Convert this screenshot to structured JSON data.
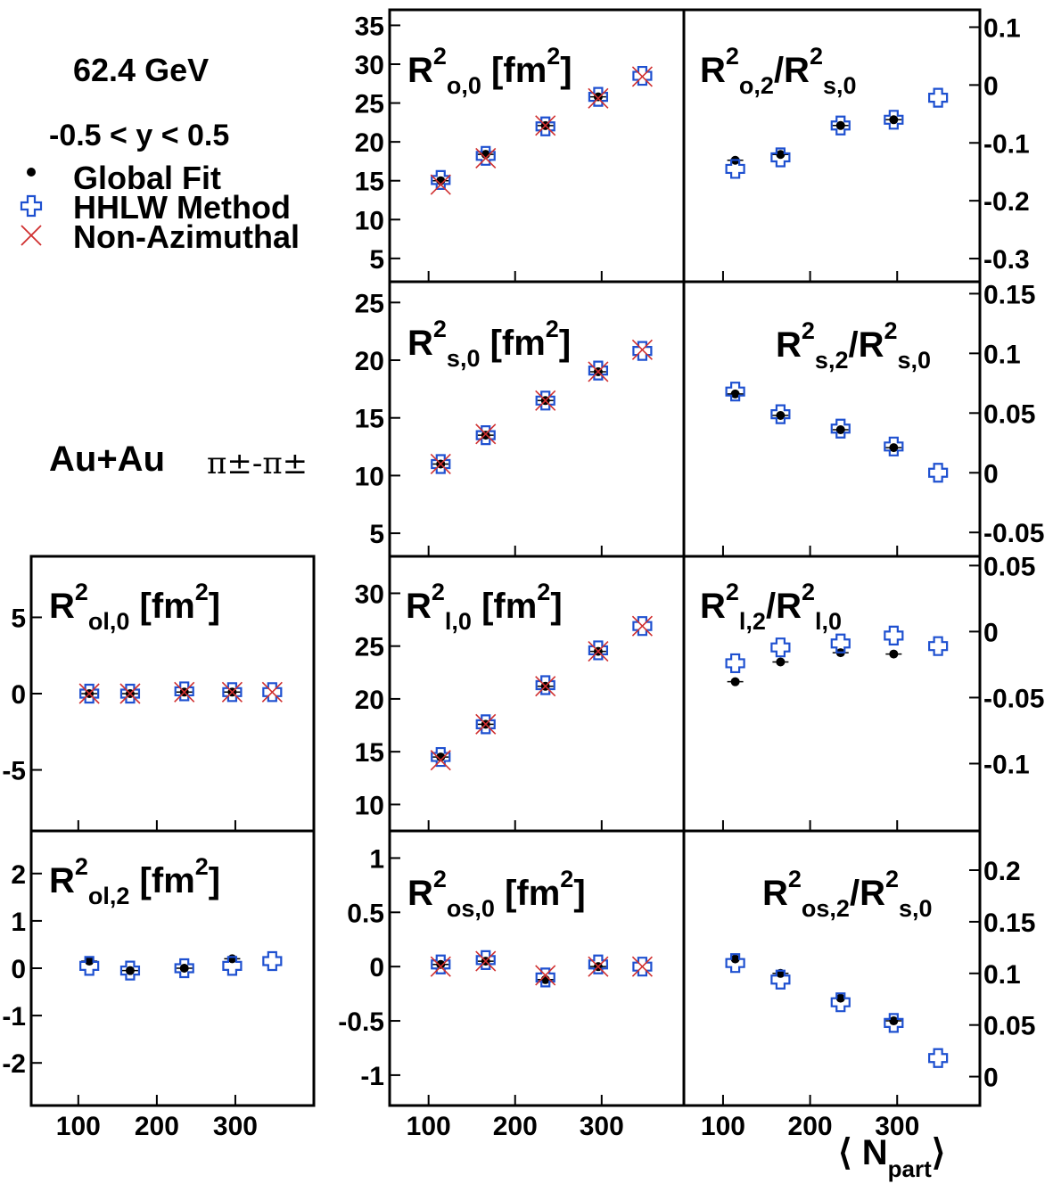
{
  "header": {
    "energy": "62.4 GeV",
    "rapidity": "-0.5 < y < 0.5",
    "system": "Au+Au",
    "pairs": "π±-π±"
  },
  "legend": [
    {
      "label": "Global Fit",
      "symbol": "dot",
      "color": "#000000"
    },
    {
      "label": "HHLW Method",
      "symbol": "open-cross",
      "color": "#1e50d0"
    },
    {
      "label": "Non-Azimuthal",
      "symbol": "x",
      "color": "#d03030"
    }
  ],
  "x_axis_title": {
    "main": "⟨ N",
    "sub": "part",
    "close": "⟩"
  },
  "chart_data": [
    {
      "id": "Ro0",
      "type": "scatter",
      "title_main": "R",
      "title_sup": "2",
      "title_sub": "o,0",
      "title_tail": " [fm",
      "title_tail_sup": "2",
      "title_close": "]",
      "xlim": [
        55,
        395
      ],
      "ylim": [
        2.0,
        37.0
      ],
      "x_ticks": [
        100,
        200,
        300
      ],
      "x_tick_labels": [],
      "y_ticks": [
        5,
        10,
        15,
        20,
        25,
        30,
        35
      ],
      "y_tick_labels": [
        "5",
        "10",
        "15",
        "20",
        "25",
        "30",
        "35"
      ],
      "y_label_side": "left",
      "series": [
        {
          "name": "Global Fit",
          "x": [
            114,
            166,
            235,
            296
          ],
          "y": [
            15.0,
            18.4,
            22.1,
            25.8
          ]
        },
        {
          "name": "HHLW Method",
          "x": [
            114,
            166,
            235,
            296,
            347
          ],
          "y": [
            15.1,
            18.2,
            22.0,
            25.8,
            28.5
          ]
        },
        {
          "name": "Non-Azimuthal",
          "x": [
            114,
            166,
            235,
            296,
            347
          ],
          "y": [
            14.5,
            17.9,
            22.1,
            25.6,
            28.4
          ]
        }
      ]
    },
    {
      "id": "Ro2",
      "type": "scatter",
      "title_main": "R",
      "title_sup": "2",
      "title_sub": "o,2",
      "title_tail": "/R",
      "title_tail_sup": "2",
      "title_tail_sub": "s,0",
      "xlim": [
        55,
        395
      ],
      "ylim": [
        -0.34,
        0.13
      ],
      "x_ticks": [
        100,
        200,
        300
      ],
      "x_tick_labels": [],
      "y_ticks": [
        -0.3,
        -0.2,
        -0.1,
        0,
        0.1
      ],
      "y_tick_labels": [
        "-0.3",
        "-0.2",
        "-0.1",
        "0",
        "0.1"
      ],
      "y_label_side": "right",
      "series": [
        {
          "name": "Global Fit",
          "x": [
            114,
            166,
            235,
            296
          ],
          "y": [
            -0.13,
            -0.12,
            -0.07,
            -0.06
          ]
        },
        {
          "name": "HHLW Method",
          "x": [
            114,
            166,
            235,
            296,
            347
          ],
          "y": [
            -0.145,
            -0.125,
            -0.07,
            -0.06,
            -0.022
          ]
        }
      ]
    },
    {
      "id": "Rs0",
      "type": "scatter",
      "title_main": "R",
      "title_sup": "2",
      "title_sub": "s,0",
      "title_tail": " [fm",
      "title_tail_sup": "2",
      "title_close": "]",
      "xlim": [
        55,
        395
      ],
      "ylim": [
        3.0,
        26.8
      ],
      "x_ticks": [
        100,
        200,
        300
      ],
      "x_tick_labels": [],
      "y_ticks": [
        5,
        10,
        15,
        20,
        25
      ],
      "y_tick_labels": [
        "5",
        "10",
        "15",
        "20",
        "25"
      ],
      "y_label_side": "left",
      "series": [
        {
          "name": "Global Fit",
          "x": [
            114,
            166,
            235,
            296
          ],
          "y": [
            11.0,
            13.5,
            16.5,
            19.0
          ]
        },
        {
          "name": "HHLW Method",
          "x": [
            114,
            166,
            235,
            296,
            347
          ],
          "y": [
            11.0,
            13.5,
            16.5,
            19.1,
            20.8
          ]
        },
        {
          "name": "Non-Azimuthal",
          "x": [
            114,
            166,
            235,
            296,
            347
          ],
          "y": [
            11.0,
            13.6,
            16.5,
            19.0,
            20.9
          ]
        }
      ]
    },
    {
      "id": "Rs2",
      "type": "scatter",
      "title_main": "R",
      "title_sup": "2",
      "title_sub": "s,2",
      "title_tail": "/R",
      "title_tail_sup": "2",
      "title_tail_sub": "s,0",
      "xlim": [
        55,
        395
      ],
      "ylim": [
        -0.07,
        0.16
      ],
      "x_ticks": [
        100,
        200,
        300
      ],
      "x_tick_labels": [],
      "y_ticks": [
        -0.05,
        0,
        0.05,
        0.1,
        0.15
      ],
      "y_tick_labels": [
        "-0.05",
        "0",
        "0.05",
        "0.1",
        "0.15"
      ],
      "y_label_side": "right",
      "series": [
        {
          "name": "Global Fit",
          "x": [
            114,
            166,
            235,
            296
          ],
          "y": [
            0.066,
            0.048,
            0.036,
            0.021
          ]
        },
        {
          "name": "HHLW Method",
          "x": [
            114,
            166,
            235,
            296,
            347
          ],
          "y": [
            0.068,
            0.049,
            0.037,
            0.022,
            0.0
          ]
        }
      ]
    },
    {
      "id": "Rol0",
      "type": "scatter",
      "title_main": "R",
      "title_sup": "2",
      "title_sub": "ol,0",
      "title_tail": " [fm",
      "title_tail_sup": "2",
      "title_close": "]",
      "xlim": [
        40,
        400
      ],
      "ylim": [
        -9.0,
        9.0
      ],
      "x_ticks": [
        100,
        200,
        300
      ],
      "x_tick_labels": [],
      "y_ticks": [
        -5,
        0,
        5
      ],
      "y_tick_labels": [
        "-5",
        "0",
        "5"
      ],
      "y_label_side": "left",
      "series": [
        {
          "name": "Global Fit",
          "x": [
            114,
            166,
            235,
            296
          ],
          "y": [
            0.0,
            0.0,
            0.1,
            0.1
          ]
        },
        {
          "name": "HHLW Method",
          "x": [
            114,
            166,
            235,
            296,
            347
          ],
          "y": [
            0.0,
            0.0,
            0.15,
            0.1,
            0.1
          ]
        },
        {
          "name": "Non-Azimuthal",
          "x": [
            114,
            166,
            235,
            296,
            347
          ],
          "y": [
            0.0,
            0.0,
            0.1,
            0.1,
            0.1
          ]
        }
      ]
    },
    {
      "id": "Rl0",
      "type": "scatter",
      "title_main": "R",
      "title_sup": "2",
      "title_sub": "l,0",
      "title_tail": " [fm",
      "title_tail_sup": "2",
      "title_close": "]",
      "xlim": [
        55,
        395
      ],
      "ylim": [
        7.5,
        33.5
      ],
      "x_ticks": [
        100,
        200,
        300
      ],
      "x_tick_labels": [],
      "y_ticks": [
        10,
        15,
        20,
        25,
        30
      ],
      "y_tick_labels": [
        "10",
        "15",
        "20",
        "25",
        "30"
      ],
      "y_label_side": "left",
      "series": [
        {
          "name": "Global Fit",
          "x": [
            114,
            166,
            235,
            296
          ],
          "y": [
            14.5,
            17.6,
            21.2,
            24.5
          ]
        },
        {
          "name": "HHLW Method",
          "x": [
            114,
            166,
            235,
            296,
            347
          ],
          "y": [
            14.5,
            17.6,
            21.3,
            24.6,
            26.9
          ]
        },
        {
          "name": "Non-Azimuthal",
          "x": [
            114,
            166,
            235,
            296,
            347
          ],
          "y": [
            14.2,
            17.6,
            21.2,
            24.5,
            26.9
          ]
        }
      ]
    },
    {
      "id": "Rl2",
      "type": "scatter",
      "title_main": "R",
      "title_sup": "2",
      "title_sub": "l,2",
      "title_tail": "/R",
      "title_tail_sup": "2",
      "title_tail_sub": "l,0",
      "xlim": [
        55,
        395
      ],
      "ylim": [
        -0.151,
        0.057
      ],
      "x_ticks": [
        100,
        200,
        300
      ],
      "x_tick_labels": [],
      "y_ticks": [
        -0.1,
        -0.05,
        0,
        0.05
      ],
      "y_tick_labels": [
        "-0.1",
        "-0.05",
        "0",
        "0.05"
      ],
      "y_label_side": "right",
      "series": [
        {
          "name": "Global Fit",
          "x": [
            114,
            166,
            235,
            296
          ],
          "y": [
            -0.038,
            -0.023,
            -0.016,
            -0.017
          ]
        },
        {
          "name": "HHLW Method",
          "x": [
            114,
            166,
            235,
            296,
            347
          ],
          "y": [
            -0.024,
            -0.012,
            -0.009,
            -0.003,
            -0.011
          ]
        }
      ]
    },
    {
      "id": "Rol2",
      "type": "scatter",
      "title_main": "R",
      "title_sup": "2",
      "title_sub": "ol,2",
      "title_tail": " [fm",
      "title_tail_sup": "2",
      "title_close": "]",
      "xlim": [
        40,
        400
      ],
      "ylim": [
        -2.9,
        2.9
      ],
      "x_ticks": [
        100,
        200,
        300
      ],
      "x_tick_labels": [
        "100",
        "200",
        "300"
      ],
      "y_ticks": [
        -2,
        -1,
        0,
        1,
        2
      ],
      "y_tick_labels": [
        "-2",
        "-1",
        "0",
        "1",
        "2"
      ],
      "y_label_side": "left",
      "series": [
        {
          "name": "Global Fit",
          "x": [
            114,
            166,
            235,
            296
          ],
          "y": [
            0.15,
            -0.05,
            0.0,
            0.2
          ]
        },
        {
          "name": "HHLW Method",
          "x": [
            114,
            166,
            235,
            296,
            347
          ],
          "y": [
            0.05,
            -0.05,
            0.0,
            0.05,
            0.15
          ]
        }
      ]
    },
    {
      "id": "Ros0",
      "type": "scatter",
      "title_main": "R",
      "title_sup": "2",
      "title_sub": "os,0",
      "title_tail": " [fm",
      "title_tail_sup": "2",
      "title_close": "]",
      "xlim": [
        55,
        395
      ],
      "ylim": [
        -1.28,
        1.25
      ],
      "x_ticks": [
        100,
        200,
        300
      ],
      "x_tick_labels": [
        "100",
        "200",
        "300"
      ],
      "y_ticks": [
        -1,
        -0.5,
        0,
        0.5,
        1
      ],
      "y_tick_labels": [
        "-1",
        "-0.5",
        "0",
        "0.5",
        "1"
      ],
      "y_label_side": "left",
      "series": [
        {
          "name": "Global Fit",
          "x": [
            114,
            166,
            235,
            296
          ],
          "y": [
            0.02,
            0.05,
            -0.12,
            0.0
          ]
        },
        {
          "name": "HHLW Method",
          "x": [
            114,
            166,
            235,
            296,
            347
          ],
          "y": [
            0.02,
            0.06,
            -0.1,
            0.02,
            0.0
          ]
        },
        {
          "name": "Non-Azimuthal",
          "x": [
            114,
            166,
            235,
            296,
            347
          ],
          "y": [
            0.0,
            0.05,
            -0.08,
            0.0,
            0.0
          ]
        }
      ]
    },
    {
      "id": "Ros2",
      "type": "scatter",
      "title_main": "R",
      "title_sup": "2",
      "title_sub": "os,2",
      "title_tail": "/R",
      "title_tail_sup": "2",
      "title_tail_sub": "s,0",
      "xlim": [
        55,
        395
      ],
      "ylim": [
        -0.028,
        0.238
      ],
      "x_ticks": [
        100,
        200,
        300
      ],
      "x_tick_labels": [
        "100",
        "200",
        "300"
      ],
      "y_ticks": [
        0,
        0.05,
        0.1,
        0.15,
        0.2
      ],
      "y_tick_labels": [
        "0",
        "0.05",
        "0.1",
        "0.15",
        "0.2"
      ],
      "y_label_side": "right",
      "series": [
        {
          "name": "Global Fit",
          "x": [
            114,
            166,
            235,
            296
          ],
          "y": [
            0.114,
            0.1,
            0.076,
            0.054
          ]
        },
        {
          "name": "HHLW Method",
          "x": [
            114,
            166,
            235,
            296,
            347
          ],
          "y": [
            0.11,
            0.094,
            0.072,
            0.052,
            0.018
          ]
        }
      ]
    }
  ]
}
